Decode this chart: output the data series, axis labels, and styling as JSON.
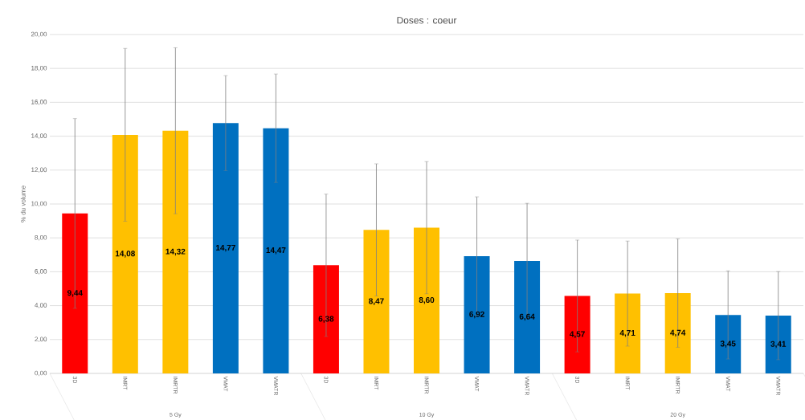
{
  "chart_data": {
    "type": "bar",
    "title": "Doses : coeur",
    "ylabel": "% du volume",
    "categories": [
      "3D",
      "IMRT",
      "IMRTR",
      "VMAT",
      "VMATR",
      "3D",
      "IMRT",
      "IMRTR",
      "VMAT",
      "VMATR",
      "3D",
      "IMRT",
      "IMRTR",
      "VMAT",
      "VMATR"
    ],
    "values": [
      9.44,
      14.08,
      14.32,
      14.77,
      14.47,
      6.38,
      8.47,
      8.6,
      6.92,
      6.64,
      4.57,
      4.71,
      4.74,
      3.45,
      3.41
    ],
    "colors": [
      "#ff0000",
      "#ffc000",
      "#ffc000",
      "#0070c0",
      "#0070c0",
      "#ff0000",
      "#ffc000",
      "#ffc000",
      "#0070c0",
      "#0070c0",
      "#ff0000",
      "#ffc000",
      "#ffc000",
      "#0070c0",
      "#0070c0"
    ],
    "errors": [
      5.6,
      5.1,
      4.9,
      2.8,
      3.2,
      4.2,
      3.9,
      3.9,
      3.5,
      3.4,
      3.3,
      3.1,
      3.2,
      2.6,
      2.6
    ],
    "value_labels": [
      "9,44",
      "14,08",
      "14,32",
      "14,77",
      "14,47",
      "6,38",
      "8,47",
      "8,60",
      "6,92",
      "6,64",
      "4,57",
      "4,71",
      "4,74",
      "3,45",
      "3,41"
    ],
    "annotations": [
      "5 Gy",
      "10 Gy",
      "20 Gy"
    ],
    "ylim": [
      0,
      20
    ],
    "yticks": [
      {
        "value": 0,
        "label": "0,00"
      },
      {
        "value": 2,
        "label": "2,00"
      },
      {
        "value": 4,
        "label": "4,00"
      },
      {
        "value": 6,
        "label": "6,00"
      },
      {
        "value": 8,
        "label": "8,00"
      },
      {
        "value": 10,
        "label": "10,00"
      },
      {
        "value": 12,
        "label": "12,00"
      },
      {
        "value": 14,
        "label": "14,00"
      },
      {
        "value": 16,
        "label": "16,00"
      },
      {
        "value": 18,
        "label": "18,00"
      },
      {
        "value": 20,
        "label": "20,00"
      }
    ],
    "grid": "y"
  }
}
